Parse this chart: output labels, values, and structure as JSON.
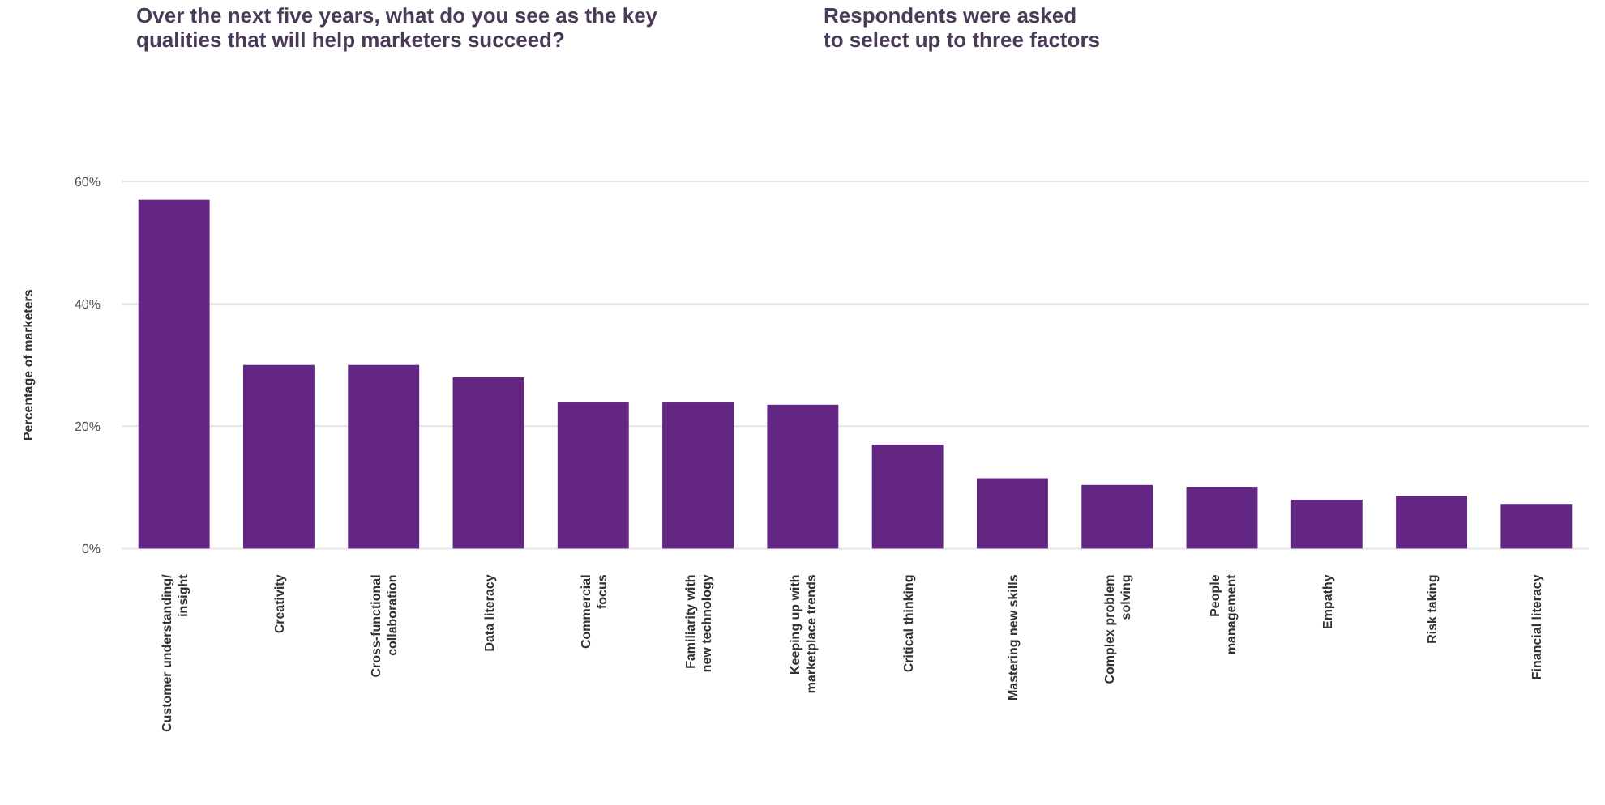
{
  "chart_data": {
    "type": "bar",
    "title": "Over the next five years, what do you see as the key\nqualities that will help marketers succeed?",
    "subtitle": "Respondents were asked\nto select up to three factors",
    "ylabel": "Percentage of marketers",
    "categories": [
      "Customer understanding/\ninsight",
      "Creativity",
      "Cross-functional\ncollaboration",
      "Data literacy",
      "Commercial\nfocus",
      "Familiarity with\nnew technology",
      "Keeping up with\nmarketplace trends",
      "Critical thinking",
      "Mastering new skills",
      "Complex problem\nsolving",
      "People\nmanagement",
      "Empathy",
      "Risk taking",
      "Financial literacy"
    ],
    "values": [
      57,
      30,
      30,
      28,
      24,
      24,
      23.5,
      17,
      11.5,
      10.4,
      10.1,
      8,
      8.6,
      7.3
    ],
    "color": "#642683",
    "ylim": [
      0,
      60
    ],
    "yticks": [
      {
        "value": 0,
        "label": "0%"
      },
      {
        "value": 20,
        "label": "20%"
      },
      {
        "value": 40,
        "label": "40%"
      },
      {
        "value": 60,
        "label": "60%"
      }
    ],
    "grid": "y"
  }
}
